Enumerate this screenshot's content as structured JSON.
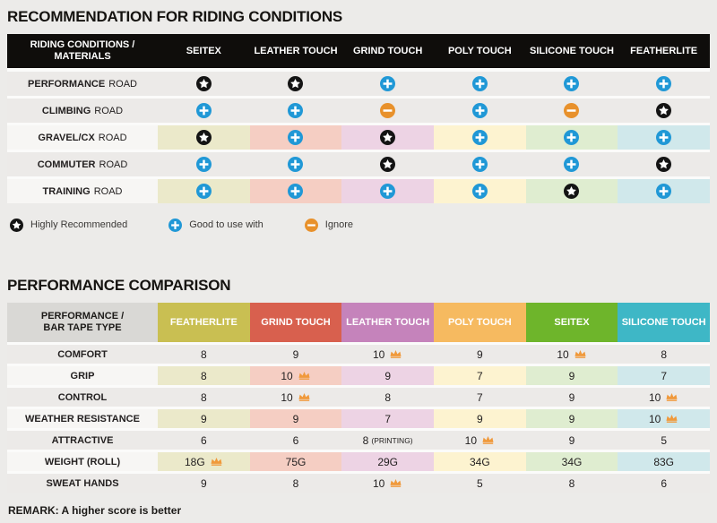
{
  "riding_section": {
    "title": "RECOMMENDATION FOR RIDING CONDITIONS",
    "corner_line1": "RIDING CONDITIONS /",
    "corner_line2": "MATERIALS",
    "columns": [
      "SEITEX",
      "LEATHER TOUCH",
      "GRIND TOUCH",
      "POLY TOUCH",
      "SILICONE TOUCH",
      "FEATHERLITE"
    ],
    "column_tints": [
      "#EBE9CA",
      "#F5CEC3",
      "#EDD3E4",
      "#FDF3D0",
      "#DFEDD0",
      "#D0E8EB"
    ],
    "rows": [
      {
        "label_bold": "PERFORMANCE",
        "label_rest": "ROAD",
        "tinted": false,
        "ratings": [
          "star",
          "star",
          "plus",
          "plus",
          "plus",
          "plus"
        ]
      },
      {
        "label_bold": "CLIMBING",
        "label_rest": "ROAD",
        "tinted": false,
        "ratings": [
          "plus",
          "plus",
          "minus",
          "plus",
          "minus",
          "star"
        ]
      },
      {
        "label_bold": "GRAVEL/CX",
        "label_rest": "ROAD",
        "tinted": true,
        "ratings": [
          "star",
          "plus",
          "star",
          "plus",
          "plus",
          "plus"
        ]
      },
      {
        "label_bold": "COMMUTER",
        "label_rest": "ROAD",
        "tinted": false,
        "ratings": [
          "plus",
          "plus",
          "star",
          "plus",
          "plus",
          "star"
        ]
      },
      {
        "label_bold": "TRAINING",
        "label_rest": "ROAD",
        "tinted": true,
        "ratings": [
          "plus",
          "plus",
          "plus",
          "plus",
          "star",
          "plus"
        ]
      }
    ],
    "legend": [
      {
        "icon": "star",
        "label": "Highly Recommended"
      },
      {
        "icon": "plus",
        "label": "Good to use with"
      },
      {
        "icon": "minus",
        "label": "Ignore"
      }
    ]
  },
  "performance_section": {
    "title": "PERFORMANCE COMPARISON",
    "corner_line1": "PERFORMANCE /",
    "corner_line2": "BAR TAPE TYPE",
    "columns": [
      {
        "label": "FEATHERLITE",
        "color": "#C9BF52"
      },
      {
        "label": "GRIND TOUCH",
        "color": "#D8604E"
      },
      {
        "label": "LEATHER TOUCH",
        "color": "#C583BB"
      },
      {
        "label": "POLY TOUCH",
        "color": "#F6BA60"
      },
      {
        "label": "SEITEX",
        "color": "#6EB52B"
      },
      {
        "label": "SILICONE TOUCH",
        "color": "#3EB7C6"
      }
    ],
    "column_tints": [
      "#EBE9CA",
      "#F5CEC3",
      "#EDD3E4",
      "#FDF3D0",
      "#DFEDD0",
      "#D0E8EB"
    ],
    "rows": [
      {
        "label": "COMFORT",
        "tinted": false,
        "values": [
          {
            "v": "8"
          },
          {
            "v": "9"
          },
          {
            "v": "10",
            "crown": true
          },
          {
            "v": "9"
          },
          {
            "v": "10",
            "crown": true
          },
          {
            "v": "8"
          }
        ]
      },
      {
        "label": "GRIP",
        "tinted": true,
        "values": [
          {
            "v": "8"
          },
          {
            "v": "10",
            "crown": true
          },
          {
            "v": "9"
          },
          {
            "v": "7"
          },
          {
            "v": "9"
          },
          {
            "v": "7"
          }
        ]
      },
      {
        "label": "CONTROL",
        "tinted": false,
        "values": [
          {
            "v": "8"
          },
          {
            "v": "10",
            "crown": true
          },
          {
            "v": "8"
          },
          {
            "v": "7"
          },
          {
            "v": "9"
          },
          {
            "v": "10",
            "crown": true
          }
        ]
      },
      {
        "label": "WEATHER RESISTANCE",
        "tinted": true,
        "values": [
          {
            "v": "9"
          },
          {
            "v": "9"
          },
          {
            "v": "7"
          },
          {
            "v": "9"
          },
          {
            "v": "9"
          },
          {
            "v": "10",
            "crown": true
          }
        ]
      },
      {
        "label": "ATTRACTIVE",
        "tinted": false,
        "values": [
          {
            "v": "6"
          },
          {
            "v": "6"
          },
          {
            "v": "8",
            "note": "(PRINTING)"
          },
          {
            "v": "10",
            "crown": true
          },
          {
            "v": "9"
          },
          {
            "v": "5"
          }
        ]
      },
      {
        "label": "WEIGHT (ROLL)",
        "tinted": true,
        "values": [
          {
            "v": "18G",
            "crown": true
          },
          {
            "v": "75G"
          },
          {
            "v": "29G"
          },
          {
            "v": "34G"
          },
          {
            "v": "34G"
          },
          {
            "v": "83G"
          }
        ]
      },
      {
        "label": "SWEAT HANDS",
        "tinted": false,
        "values": [
          {
            "v": "9"
          },
          {
            "v": "8"
          },
          {
            "v": "10",
            "crown": true
          },
          {
            "v": "5"
          },
          {
            "v": "8"
          },
          {
            "v": "6"
          }
        ]
      }
    ],
    "remark": "REMARK: A higher score is better"
  },
  "colors": {
    "star_bg": "#141414",
    "plus_bg": "#2098D6",
    "minus_bg": "#E8912B",
    "crown": "#F0993B"
  }
}
